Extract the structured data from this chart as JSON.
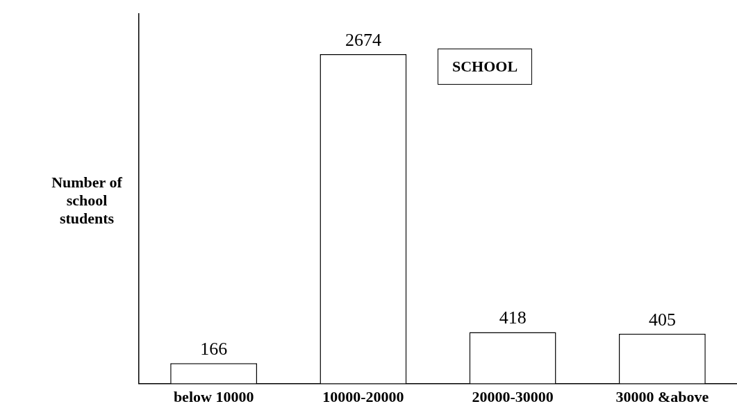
{
  "chart_data": {
    "type": "bar",
    "ylabel": "Number of school students",
    "categories": [
      "below 10000",
      "10000-20000",
      "20000-30000",
      "30000 &above"
    ],
    "series": [
      {
        "name": "SCHOOL",
        "color": "#ffffff",
        "values": [
          166,
          2674,
          418,
          405
        ]
      }
    ],
    "data_labels": true,
    "legend": "top right",
    "grid": false,
    "tick_labels": "x"
  }
}
